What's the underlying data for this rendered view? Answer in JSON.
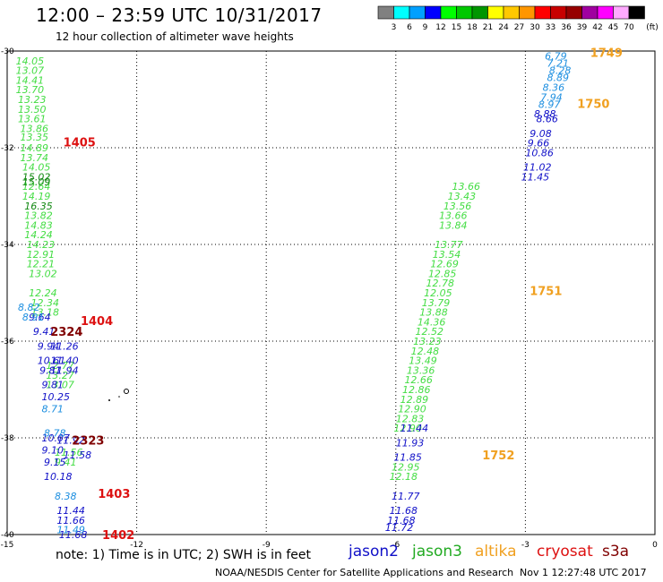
{
  "header": {
    "title": "12:00 – 23:59 UTC 10/31/2017",
    "subtitle": "12 hour collection of altimeter wave heights"
  },
  "colorbar": {
    "colors": [
      "#808080",
      "#00ffff",
      "#00a0ff",
      "#0000ff",
      "#00ff00",
      "#00c800",
      "#009600",
      "#ffff00",
      "#ffc800",
      "#ff9600",
      "#ff0000",
      "#c80000",
      "#960000",
      "#a000a0",
      "#ff00ff",
      "#ffaaff",
      "#000000"
    ],
    "labels": [
      "3",
      "6",
      "9",
      "12",
      "15",
      "18",
      "21",
      "24",
      "27",
      "30",
      "33",
      "36",
      "39",
      "42",
      "45",
      "70"
    ],
    "unit": "(ft)"
  },
  "footer": {
    "note": "note:  1) Time is in UTC;  2) SWH is in feet",
    "legend": [
      {
        "name": "jason2",
        "color": "#1010c8"
      },
      {
        "name": "jason3",
        "color": "#22aa22"
      },
      {
        "name": "altika",
        "color": "#f0a020"
      },
      {
        "name": "cryosat",
        "color": "#dd1111"
      },
      {
        "name": "s3a",
        "color": "#800000"
      }
    ],
    "credit": "NOAA/NESDIS Center for Satellite Applications and Research",
    "timestamp": "Nov  1 12:27:48 UTC 2017"
  },
  "chart_data": {
    "type": "scatter",
    "title": "12:00 – 23:59 UTC 10/31/2017",
    "xlim": [
      -15,
      0
    ],
    "ylim": [
      -40,
      -30
    ],
    "x_ticks": [
      "-15",
      "-12",
      "-9",
      "-6",
      "-3",
      "0"
    ],
    "y_ticks": [
      "-30",
      "-32",
      "-34",
      "-36",
      "-38",
      "-40"
    ],
    "grid": true,
    "time_labels": [
      {
        "text": "1405",
        "x": -13.7,
        "y": -31.88,
        "color": "#dd1111"
      },
      {
        "text": "1404",
        "x": -13.3,
        "y": -35.57,
        "color": "#dd1111"
      },
      {
        "text": "1403",
        "x": -12.9,
        "y": -39.15,
        "color": "#dd1111"
      },
      {
        "text": "1402",
        "x": -12.8,
        "y": -40.0,
        "color": "#dd1111"
      },
      {
        "text": "2324",
        "x": -14.0,
        "y": -35.8,
        "color": "#800000"
      },
      {
        "text": "2323",
        "x": -13.5,
        "y": -38.05,
        "color": "#800000"
      },
      {
        "text": "1749",
        "x": -1.5,
        "y": -30.03,
        "color": "#f0a020"
      },
      {
        "text": "1750",
        "x": -1.8,
        "y": -31.08,
        "color": "#f0a020"
      },
      {
        "text": "1751",
        "x": -2.9,
        "y": -34.95,
        "color": "#f0a020"
      },
      {
        "text": "1752",
        "x": -4.0,
        "y": -38.35,
        "color": "#f0a020"
      }
    ],
    "series": [
      {
        "name": "jason3",
        "color": "#44dd44",
        "points": [
          {
            "x": -14.8,
            "y": -30.2,
            "v": "14.05"
          },
          {
            "x": -14.8,
            "y": -30.4,
            "v": "13.07"
          },
          {
            "x": -14.8,
            "y": -30.6,
            "v": "14.41"
          },
          {
            "x": -14.8,
            "y": -30.8,
            "v": "13.70"
          },
          {
            "x": -14.75,
            "y": -31.0,
            "v": "13.23"
          },
          {
            "x": -14.75,
            "y": -31.2,
            "v": "13.50"
          },
          {
            "x": -14.75,
            "y": -31.4,
            "v": "13.61"
          },
          {
            "x": -14.7,
            "y": -31.6,
            "v": "13.86"
          },
          {
            "x": -14.7,
            "y": -31.78,
            "v": "13.35"
          },
          {
            "x": -14.7,
            "y": -32.0,
            "v": "14.89"
          },
          {
            "x": -14.7,
            "y": -32.2,
            "v": "13.74"
          },
          {
            "x": -14.65,
            "y": -32.4,
            "v": "14.05"
          },
          {
            "x": -14.65,
            "y": -32.8,
            "v": "12.64"
          },
          {
            "x": -14.65,
            "y": -33.0,
            "v": "14.19"
          },
          {
            "x": -14.6,
            "y": -33.4,
            "v": "13.82"
          },
          {
            "x": -14.6,
            "y": -33.6,
            "v": "14.83"
          },
          {
            "x": -14.6,
            "y": -33.8,
            "v": "14.24"
          },
          {
            "x": -14.55,
            "y": -34.0,
            "v": "14.23"
          },
          {
            "x": -14.55,
            "y": -34.2,
            "v": "12.91"
          },
          {
            "x": -14.55,
            "y": -34.4,
            "v": "12.21"
          },
          {
            "x": -14.5,
            "y": -34.6,
            "v": "13.02"
          },
          {
            "x": -14.5,
            "y": -35.0,
            "v": "12.24"
          },
          {
            "x": -14.45,
            "y": -35.2,
            "v": "12.34"
          },
          {
            "x": -14.45,
            "y": -35.4,
            "v": "13.18"
          },
          {
            "x": -14.1,
            "y": -36.5,
            "v": "12.77"
          },
          {
            "x": -14.1,
            "y": -36.7,
            "v": "13.27"
          },
          {
            "x": -14.1,
            "y": -36.9,
            "v": "13.07"
          },
          {
            "x": -13.9,
            "y": -38.3,
            "v": "11.56"
          },
          {
            "x": -13.9,
            "y": -38.5,
            "v": "9.41"
          },
          {
            "x": -4.7,
            "y": -32.8,
            "v": "13.66"
          },
          {
            "x": -4.8,
            "y": -33.0,
            "v": "13.43"
          },
          {
            "x": -4.9,
            "y": -33.2,
            "v": "13.56"
          },
          {
            "x": -5.0,
            "y": -33.4,
            "v": "13.66"
          },
          {
            "x": -5.0,
            "y": -33.6,
            "v": "13.84"
          },
          {
            "x": -5.1,
            "y": -34.0,
            "v": "13.77"
          },
          {
            "x": -5.15,
            "y": -34.2,
            "v": "13.54"
          },
          {
            "x": -5.2,
            "y": -34.4,
            "v": "12.69"
          },
          {
            "x": -5.25,
            "y": -34.6,
            "v": "12.85"
          },
          {
            "x": -5.3,
            "y": -34.8,
            "v": "12.78"
          },
          {
            "x": -5.35,
            "y": -35.0,
            "v": "12.05"
          },
          {
            "x": -5.4,
            "y": -35.2,
            "v": "13.79"
          },
          {
            "x": -5.45,
            "y": -35.4,
            "v": "13.88"
          },
          {
            "x": -5.5,
            "y": -35.6,
            "v": "14.36"
          },
          {
            "x": -5.55,
            "y": -35.8,
            "v": "12.52"
          },
          {
            "x": -5.6,
            "y": -36.0,
            "v": "13.23"
          },
          {
            "x": -5.65,
            "y": -36.2,
            "v": "12.48"
          },
          {
            "x": -5.7,
            "y": -36.4,
            "v": "13.49"
          },
          {
            "x": -5.75,
            "y": -36.6,
            "v": "13.36"
          },
          {
            "x": -5.8,
            "y": -36.8,
            "v": "12.66"
          },
          {
            "x": -5.85,
            "y": -37.0,
            "v": "12.86"
          },
          {
            "x": -5.9,
            "y": -37.2,
            "v": "12.89"
          },
          {
            "x": -5.95,
            "y": -37.4,
            "v": "12.90"
          },
          {
            "x": -6.0,
            "y": -37.6,
            "v": "12.83"
          },
          {
            "x": -6.05,
            "y": -37.8,
            "v": "12.90"
          },
          {
            "x": -6.1,
            "y": -38.6,
            "v": "12.95"
          },
          {
            "x": -6.15,
            "y": -38.8,
            "v": "12.18"
          }
        ]
      },
      {
        "name": "jason3-dark",
        "color": "#118811",
        "points": [
          {
            "x": -14.65,
            "y": -32.6,
            "v": "15.02"
          },
          {
            "x": -14.65,
            "y": -32.7,
            "v": "15.09"
          },
          {
            "x": -14.6,
            "y": -33.2,
            "v": "16.35"
          }
        ]
      },
      {
        "name": "jason2",
        "color": "#1010c8",
        "points": [
          {
            "x": -14.5,
            "y": -35.5,
            "v": "9.64"
          },
          {
            "x": -14.4,
            "y": -35.8,
            "v": "9.41"
          },
          {
            "x": -14.3,
            "y": -36.1,
            "v": "9.94"
          },
          {
            "x": -14.0,
            "y": -36.1,
            "v": "11.26"
          },
          {
            "x": -14.3,
            "y": -36.4,
            "v": "10.61"
          },
          {
            "x": -14.0,
            "y": -36.4,
            "v": "11.40"
          },
          {
            "x": -14.25,
            "y": -36.6,
            "v": "9.81"
          },
          {
            "x": -14.0,
            "y": -36.6,
            "v": "11.94"
          },
          {
            "x": -14.2,
            "y": -36.9,
            "v": "9.81"
          },
          {
            "x": -14.2,
            "y": -37.15,
            "v": "10.25"
          },
          {
            "x": -14.2,
            "y": -38.0,
            "v": "10.07"
          },
          {
            "x": -13.85,
            "y": -38.05,
            "v": "11.92"
          },
          {
            "x": -14.2,
            "y": -38.25,
            "v": "9.10"
          },
          {
            "x": -13.7,
            "y": -38.35,
            "v": "11.58"
          },
          {
            "x": -14.15,
            "y": -38.5,
            "v": "9.15"
          },
          {
            "x": -14.15,
            "y": -38.8,
            "v": "10.18"
          },
          {
            "x": -13.85,
            "y": -39.5,
            "v": "11.44"
          },
          {
            "x": -13.85,
            "y": -39.7,
            "v": "11.66"
          },
          {
            "x": -13.8,
            "y": -40.0,
            "v": "11.68"
          },
          {
            "x": -2.8,
            "y": -31.3,
            "v": "8.88"
          },
          {
            "x": -2.75,
            "y": -31.4,
            "v": "8.66"
          },
          {
            "x": -2.9,
            "y": -31.7,
            "v": "9.08"
          },
          {
            "x": -2.95,
            "y": -31.9,
            "v": "9.66"
          },
          {
            "x": -3.0,
            "y": -32.1,
            "v": "10.86"
          },
          {
            "x": -3.05,
            "y": -32.4,
            "v": "11.02"
          },
          {
            "x": -3.1,
            "y": -32.6,
            "v": "11.45"
          },
          {
            "x": -5.9,
            "y": -37.8,
            "v": "11.44"
          },
          {
            "x": -6.0,
            "y": -38.1,
            "v": "11.93"
          },
          {
            "x": -6.05,
            "y": -38.4,
            "v": "11.85"
          },
          {
            "x": -6.1,
            "y": -39.2,
            "v": "11.77"
          },
          {
            "x": -6.15,
            "y": -39.5,
            "v": "11.68"
          },
          {
            "x": -6.2,
            "y": -39.7,
            "v": "11.68"
          },
          {
            "x": -6.25,
            "y": -39.85,
            "v": "11.72"
          }
        ]
      },
      {
        "name": "jason2-light",
        "color": "#1e8fe0",
        "points": [
          {
            "x": -14.75,
            "y": -35.3,
            "v": "8.82"
          },
          {
            "x": -14.65,
            "y": -35.5,
            "v": "8.91"
          },
          {
            "x": -14.2,
            "y": -37.4,
            "v": "8.71"
          },
          {
            "x": -14.15,
            "y": -37.9,
            "v": "8.78"
          },
          {
            "x": -13.9,
            "y": -39.2,
            "v": "8.38"
          },
          {
            "x": -13.85,
            "y": -39.9,
            "v": "11.49"
          },
          {
            "x": -2.55,
            "y": -30.1,
            "v": "6.79"
          },
          {
            "x": -2.5,
            "y": -30.25,
            "v": "7.21"
          },
          {
            "x": -2.45,
            "y": -30.4,
            "v": "8.28"
          },
          {
            "x": -2.5,
            "y": -30.55,
            "v": "8.89"
          },
          {
            "x": -2.6,
            "y": -30.75,
            "v": "8.36"
          },
          {
            "x": -2.65,
            "y": -30.95,
            "v": "7.94"
          },
          {
            "x": -2.7,
            "y": -31.1,
            "v": "8.97"
          }
        ]
      }
    ]
  }
}
